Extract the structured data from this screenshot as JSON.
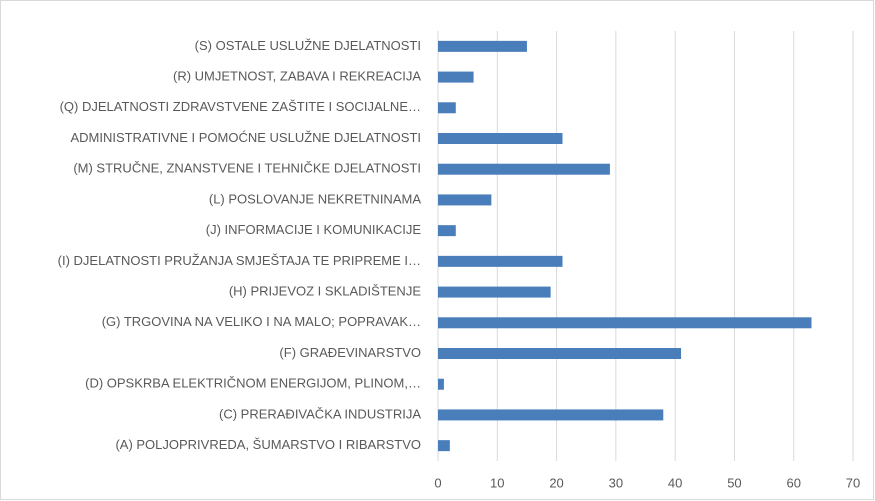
{
  "chart_data": {
    "type": "bar",
    "orientation": "horizontal",
    "color": "#4a7ebb",
    "grid": true,
    "categories": [
      "(S) OSTALE USLUŽNE DJELATNOSTI",
      "(R) UMJETNOST, ZABAVA I REKREACIJA",
      "(Q) DJELATNOSTI ZDRAVSTVENE ZAŠTITE I SOCIJALNE…",
      "ADMINISTRATIVNE I POMOĆNE USLUŽNE DJELATNOSTI",
      "(M) STRUČNE, ZNANSTVENE I TEHNIČKE DJELATNOSTI",
      "(L) POSLOVANJE NEKRETNINAMA",
      "(J) INFORMACIJE I KOMUNIKACIJE",
      "(I) DJELATNOSTI PRUŽANJA SMJEŠTAJA TE PRIPREME I…",
      "(H) PRIJEVOZ I SKLADIŠTENJE",
      "(G) TRGOVINA NA VELIKO I NA MALO; POPRAVAK…",
      "(F) GRAĐEVINARSTVO",
      "(D) OPSKRBA ELEKTRIČNOM ENERGIJOM, PLINOM,…",
      "(C) PRERAĐIVAČKA INDUSTRIJA",
      "(A) POLJOPRIVREDA, ŠUMARSTVO I RIBARSTVO"
    ],
    "values": [
      15,
      6,
      3,
      21,
      29,
      9,
      3,
      21,
      19,
      63,
      41,
      1,
      38,
      2
    ],
    "xlim": [
      0,
      70
    ],
    "xticks": [
      0,
      10,
      20,
      30,
      40,
      50,
      60,
      70
    ]
  }
}
